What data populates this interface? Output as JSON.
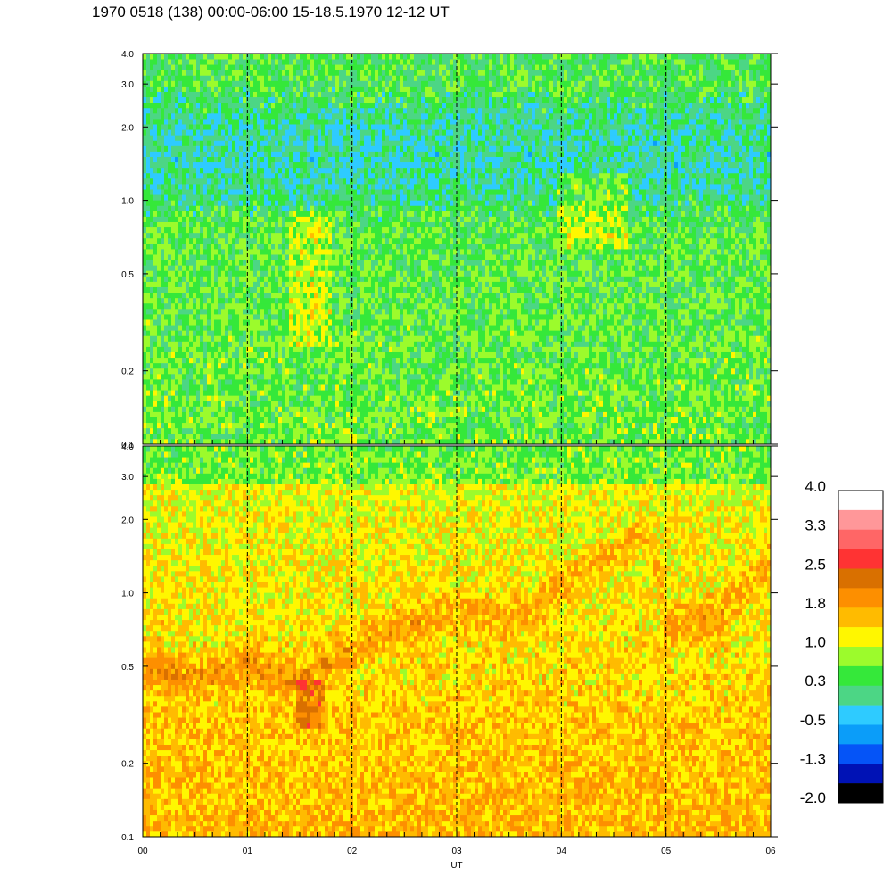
{
  "title": "1970 0518 (138) 00:00-06:00 15-18.5.1970  12-12 UT",
  "chart_data": [
    {
      "type": "heatmap",
      "panel": "upper",
      "x_ticks": [
        "00",
        "01",
        "02",
        "03",
        "04",
        "05",
        "06"
      ],
      "x_range": [
        0,
        6
      ],
      "y_ticks": [
        0.1,
        0.2,
        0.5,
        1.0,
        2.0,
        3.0,
        4.0
      ],
      "y_tick_labels": [
        "0.1",
        "0.2",
        "0.5",
        "1.0",
        "2.0",
        "3.0",
        "4.0"
      ],
      "y_range": [
        0.1,
        4.0
      ],
      "y_scale": "log",
      "hour_gridlines": "dashed",
      "dominant_colors": [
        "#35e83a",
        "#9cfb2c",
        "#2ecbff",
        "#0b9df9"
      ],
      "features": "mostly green at low y, blue patches near 1.5-3.0, yellow highlights near 01:35 and 04:15"
    },
    {
      "type": "heatmap",
      "panel": "lower",
      "x_ticks": [
        "00",
        "01",
        "02",
        "03",
        "04",
        "05",
        "06"
      ],
      "x_range": [
        0,
        6
      ],
      "y_ticks": [
        0.1,
        0.2,
        0.5,
        1.0,
        2.0,
        3.0,
        4.0
      ],
      "y_tick_labels": [
        "0.1",
        "0.2",
        "0.5",
        "1.0",
        "2.0",
        "3.0",
        "4.0"
      ],
      "y_range": [
        0.1,
        4.0
      ],
      "y_scale": "log",
      "xlabel": "UT",
      "hour_gridlines": "dashed",
      "dominant_colors": [
        "#fea600",
        "#ffbb00",
        "#d97000",
        "#fff700"
      ],
      "ridge": {
        "x": [
          0.0,
          0.5,
          1.0,
          1.5,
          2.0,
          2.5,
          3.0,
          3.5,
          3.8,
          4.0,
          4.3,
          4.6,
          4.8,
          5.0,
          5.5,
          6.0
        ],
        "y": [
          0.5,
          0.45,
          0.5,
          0.45,
          0.6,
          0.75,
          0.85,
          0.8,
          0.9,
          1.1,
          1.3,
          1.5,
          1.9,
          0.75,
          0.8,
          1.3
        ]
      }
    }
  ],
  "colorbar": {
    "colors": [
      "#ffffff",
      "#ff9799",
      "#ff6666",
      "#ff3333",
      "#d97000",
      "#fd8f00",
      "#ffbb00",
      "#fff700",
      "#9cfb2c",
      "#35e83a",
      "#4cd685",
      "#2ecbff",
      "#0b9df9",
      "#0554f7",
      "#0012b5",
      "#000000"
    ],
    "labels": [
      "4.0",
      "3.3",
      "2.5",
      "1.8",
      "1.0",
      "0.3",
      "-0.5",
      "-1.3",
      "-2.0"
    ]
  }
}
